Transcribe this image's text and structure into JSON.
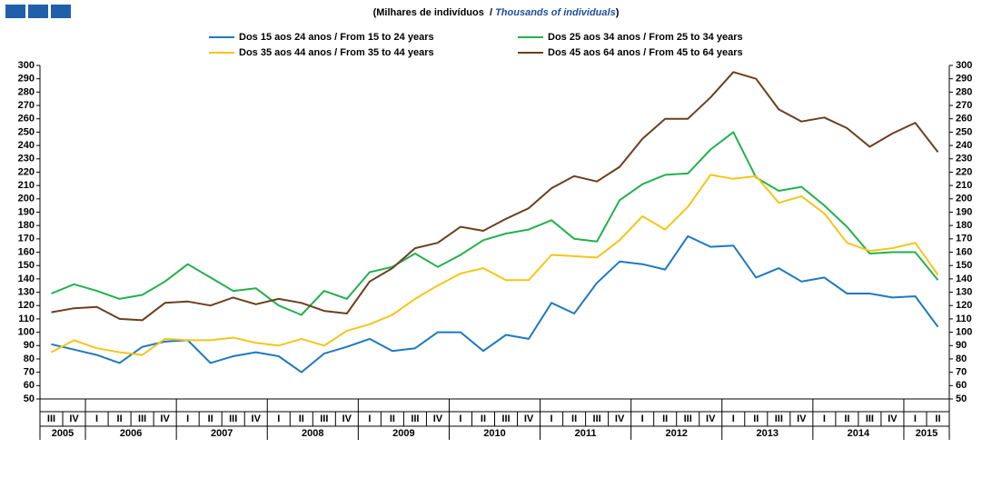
{
  "chart_data": {
    "type": "line",
    "subtitle": [
      "(Milhares de indivíduos  / ",
      "Thousands of individuals",
      ")"
    ],
    "groups": [
      {
        "name": "2005",
        "categories": [
          "III",
          "IV"
        ]
      },
      {
        "name": "2006",
        "categories": [
          "I",
          "II",
          "III",
          "IV"
        ]
      },
      {
        "name": "2007",
        "categories": [
          "I",
          "II",
          "III",
          "IV"
        ]
      },
      {
        "name": "2008",
        "categories": [
          "I",
          "II",
          "III",
          "IV"
        ]
      },
      {
        "name": "2009",
        "categories": [
          "I",
          "II",
          "III",
          "IV"
        ]
      },
      {
        "name": "2010",
        "categories": [
          "I",
          "II",
          "III",
          "IV"
        ]
      },
      {
        "name": "2011",
        "categories": [
          "I",
          "II",
          "III",
          "IV"
        ]
      },
      {
        "name": "2012",
        "categories": [
          "I",
          "II",
          "III",
          "IV"
        ]
      },
      {
        "name": "2013",
        "categories": [
          "I",
          "II",
          "III",
          "IV"
        ]
      },
      {
        "name": "2014",
        "categories": [
          "I",
          "II",
          "III",
          "IV"
        ]
      },
      {
        "name": "2015",
        "categories": [
          "I",
          "II"
        ]
      }
    ],
    "series": [
      {
        "name": "Dos 15 aos 24 anos / From 15 to 24 years",
        "color": "#1f78c1",
        "values": [
          91,
          87,
          83,
          77,
          89,
          93,
          94,
          77,
          82,
          85,
          82,
          70,
          84,
          89,
          95,
          86,
          88,
          100,
          100,
          86,
          98,
          95,
          122,
          114,
          137,
          153,
          151,
          147,
          172,
          164,
          165,
          141,
          148,
          138,
          141,
          129,
          129,
          126,
          127,
          104
        ]
      },
      {
        "name": "Dos 25 aos 34 anos / From 25 to 34 years",
        "color": "#22b14c",
        "values": [
          129,
          136,
          131,
          125,
          128,
          138,
          151,
          141,
          131,
          133,
          120,
          113,
          131,
          125,
          145,
          149,
          159,
          149,
          158,
          169,
          174,
          177,
          184,
          170,
          168,
          199,
          211,
          218,
          219,
          237,
          250,
          216,
          206,
          209,
          195,
          179,
          159,
          160,
          160,
          139
        ]
      },
      {
        "name": "Dos 35 aos 44 anos / From 35 to 44 years",
        "color": "#f5c518",
        "values": [
          85,
          94,
          88,
          85,
          83,
          95,
          94,
          94,
          96,
          92,
          90,
          95,
          90,
          101,
          106,
          113,
          125,
          135,
          144,
          148,
          139,
          139,
          158,
          157,
          156,
          169,
          187,
          177,
          194,
          218,
          215,
          217,
          197,
          202,
          189,
          167,
          161,
          163,
          167,
          143
        ]
      },
      {
        "name": "Dos 45 aos 64 anos / From 45 to 64 years",
        "color": "#6b3f1f",
        "values": [
          115,
          118,
          119,
          110,
          109,
          122,
          123,
          120,
          126,
          121,
          125,
          122,
          116,
          114,
          138,
          148,
          163,
          167,
          179,
          176,
          185,
          193,
          208,
          217,
          213,
          224,
          245,
          260,
          260,
          276,
          295,
          290,
          267,
          258,
          261,
          253,
          239,
          249,
          257,
          235
        ]
      }
    ],
    "ylim": [
      50,
      300
    ],
    "yticks": [
      50,
      60,
      70,
      80,
      90,
      100,
      110,
      120,
      130,
      140,
      150,
      160,
      170,
      180,
      190,
      200,
      210,
      220,
      230,
      240,
      250,
      260,
      270,
      280,
      290,
      300
    ],
    "grid": false
  }
}
